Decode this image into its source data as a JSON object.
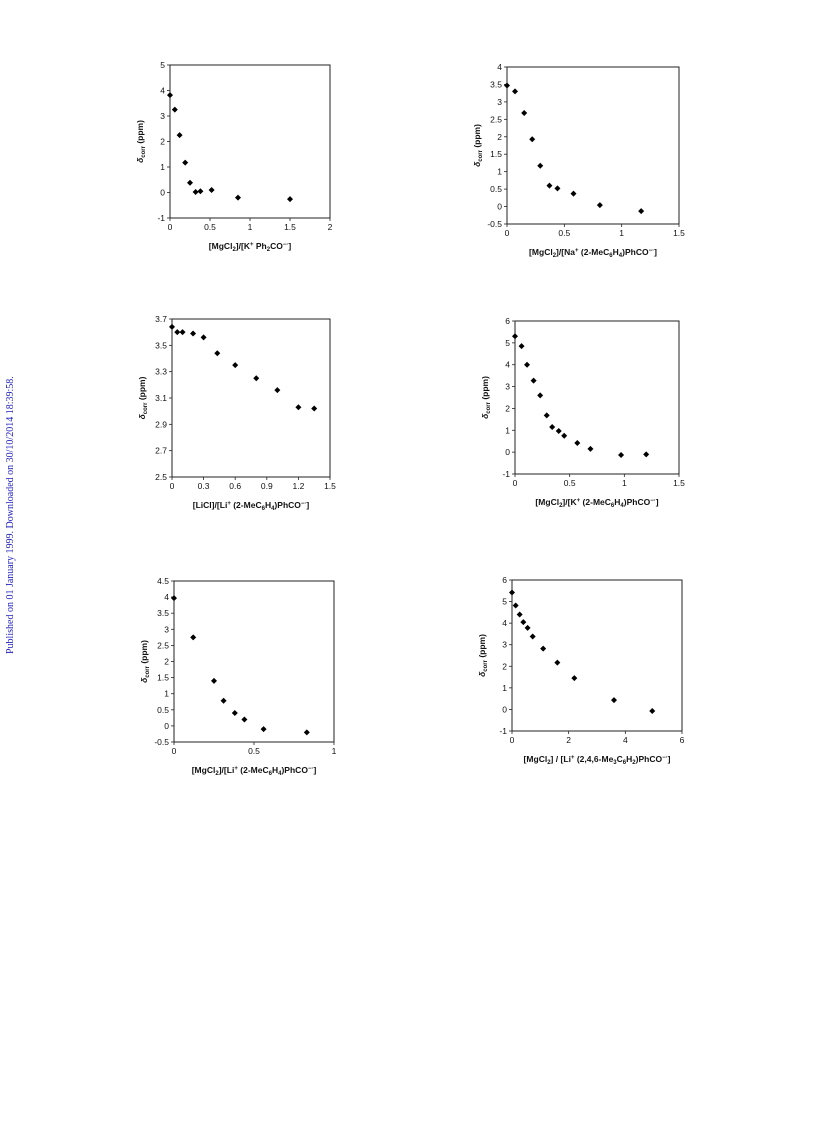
{
  "side_note": "Published on 01 January 1999. Downloaded on 30/10/2014 18:39:58.",
  "chart_data": [
    {
      "type": "scatter",
      "xlabel": "[MgCl₂]/[K⁺ Ph₂CO⁻˙]",
      "ylabel": "δcorr (ppm)",
      "xlim": [
        0,
        2
      ],
      "ylim": [
        -1,
        5
      ],
      "xticks": [
        0,
        0.5,
        1,
        1.5,
        2
      ],
      "xtick_labels": [
        "0",
        "0.5",
        "1",
        "1.5",
        "2"
      ],
      "yticks": [
        -1,
        0,
        1,
        2,
        3,
        4,
        5
      ],
      "ytick_labels": [
        "-1",
        "0",
        "1",
        "2",
        "3",
        "4",
        "5"
      ],
      "points": [
        [
          0,
          3.82
        ],
        [
          0.06,
          3.25
        ],
        [
          0.12,
          2.25
        ],
        [
          0.19,
          1.17
        ],
        [
          0.25,
          0.38
        ],
        [
          0.32,
          0.02
        ],
        [
          0.38,
          0.05
        ],
        [
          0.52,
          0.1
        ],
        [
          0.85,
          -0.2
        ],
        [
          1.5,
          -0.26
        ]
      ]
    },
    {
      "type": "scatter",
      "xlabel": "[MgCl₂]/[Na⁺ (2-MeC₆H₄)PhCO⁻˙]",
      "ylabel": "δcorr (ppm)",
      "xlim": [
        0,
        1.5
      ],
      "ylim": [
        -0.5,
        4
      ],
      "xticks": [
        0,
        0.5,
        1,
        1.5
      ],
      "xtick_labels": [
        "0",
        "0.5",
        "1",
        "1.5"
      ],
      "yticks": [
        -0.5,
        0,
        0.5,
        1,
        1.5,
        2,
        2.5,
        3,
        3.5,
        4
      ],
      "ytick_labels": [
        "-0.5",
        "0",
        "0.5",
        "1",
        "1.5",
        "2",
        "2.5",
        "3",
        "3.5",
        "4"
      ],
      "points": [
        [
          0,
          3.47
        ],
        [
          0.07,
          3.3
        ],
        [
          0.15,
          2.68
        ],
        [
          0.22,
          1.93
        ],
        [
          0.29,
          1.17
        ],
        [
          0.37,
          0.6
        ],
        [
          0.44,
          0.52
        ],
        [
          0.58,
          0.37
        ],
        [
          0.81,
          0.04
        ],
        [
          1.17,
          -0.13
        ]
      ]
    },
    {
      "type": "scatter",
      "xlabel": "[LiCl]/[Li⁺ (2-MeC₆H₄)PhCO⁻˙]",
      "ylabel": "δcorr (ppm)",
      "xlim": [
        0,
        1.5
      ],
      "ylim": [
        2.5,
        3.7
      ],
      "xticks": [
        0,
        0.3,
        0.6,
        0.9,
        1.2,
        1.5
      ],
      "xtick_labels": [
        "0",
        "0.3",
        "0.6",
        "0.9",
        "1.2",
        "1.5"
      ],
      "yticks": [
        2.5,
        2.7,
        2.9,
        3.1,
        3.3,
        3.5,
        3.7
      ],
      "ytick_labels": [
        "2.5",
        "2.7",
        "2.9",
        "3.1",
        "3.3",
        "3.5",
        "3.7"
      ],
      "points": [
        [
          0,
          3.64
        ],
        [
          0.05,
          3.6
        ],
        [
          0.1,
          3.6
        ],
        [
          0.2,
          3.59
        ],
        [
          0.3,
          3.56
        ],
        [
          0.43,
          3.44
        ],
        [
          0.6,
          3.35
        ],
        [
          0.8,
          3.25
        ],
        [
          1.0,
          3.16
        ],
        [
          1.2,
          3.03
        ],
        [
          1.35,
          3.02
        ]
      ]
    },
    {
      "type": "scatter",
      "xlabel": "[MgCl₂]/[K⁺ (2-MeC₆H₄)PhCO⁻˙]",
      "ylabel": "δcorr (ppm)",
      "xlim": [
        0,
        1.5
      ],
      "ylim": [
        -1,
        6
      ],
      "xticks": [
        0,
        0.5,
        1,
        1.5
      ],
      "xtick_labels": [
        "0",
        "0.5",
        "1",
        "1.5"
      ],
      "yticks": [
        -1,
        0,
        1,
        2,
        3,
        4,
        5,
        6
      ],
      "ytick_labels": [
        "-1",
        "0",
        "1",
        "2",
        "3",
        "4",
        "5",
        "6"
      ],
      "points": [
        [
          0,
          5.3
        ],
        [
          0.06,
          4.85
        ],
        [
          0.11,
          4.0
        ],
        [
          0.17,
          3.27
        ],
        [
          0.23,
          2.6
        ],
        [
          0.29,
          1.68
        ],
        [
          0.34,
          1.15
        ],
        [
          0.4,
          0.97
        ],
        [
          0.45,
          0.75
        ],
        [
          0.57,
          0.42
        ],
        [
          0.69,
          0.15
        ],
        [
          0.97,
          -0.13
        ],
        [
          1.2,
          -0.1
        ]
      ]
    },
    {
      "type": "scatter",
      "xlabel": "[MgCl₂]/[Li⁺ (2-MeC₆H₄)PhCO⁻˙]",
      "ylabel": "δcorr (ppm)",
      "xlim": [
        0,
        1
      ],
      "ylim": [
        -0.5,
        4.5
      ],
      "xticks": [
        0,
        0.5,
        1
      ],
      "xtick_labels": [
        "0",
        "0.5",
        "1"
      ],
      "yticks": [
        -0.5,
        0,
        0.5,
        1,
        1.5,
        2,
        2.5,
        3,
        3.5,
        4,
        4.5
      ],
      "ytick_labels": [
        "-0.5",
        "0",
        "0.5",
        "1",
        "1.5",
        "2",
        "2.5",
        "3",
        "3.5",
        "4",
        "4.5"
      ],
      "points": [
        [
          0,
          3.97
        ],
        [
          0.12,
          2.75
        ],
        [
          0.25,
          1.4
        ],
        [
          0.31,
          0.78
        ],
        [
          0.38,
          0.4
        ],
        [
          0.44,
          0.2
        ],
        [
          0.56,
          -0.1
        ],
        [
          0.83,
          -0.2
        ]
      ]
    },
    {
      "type": "scatter",
      "xlabel": "[MgCl₂] / [Li⁺ (2,4,6-Me₃C₆H₂)PhCO⁻˙]",
      "ylabel": "δcorr (ppm)",
      "xlim": [
        0,
        6
      ],
      "ylim": [
        -1,
        6
      ],
      "xticks": [
        0,
        2,
        4,
        6
      ],
      "xtick_labels": [
        "0",
        "2",
        "4",
        "6"
      ],
      "yticks": [
        -1,
        0,
        1,
        2,
        3,
        4,
        5,
        6
      ],
      "ytick_labels": [
        "-1",
        "0",
        "1",
        "2",
        "3",
        "4",
        "5",
        "6"
      ],
      "points": [
        [
          0,
          5.42
        ],
        [
          0.13,
          4.82
        ],
        [
          0.27,
          4.4
        ],
        [
          0.4,
          4.05
        ],
        [
          0.55,
          3.78
        ],
        [
          0.73,
          3.38
        ],
        [
          1.1,
          2.82
        ],
        [
          1.6,
          2.17
        ],
        [
          2.2,
          1.45
        ],
        [
          3.6,
          0.43
        ],
        [
          4.95,
          -0.07
        ]
      ]
    }
  ]
}
